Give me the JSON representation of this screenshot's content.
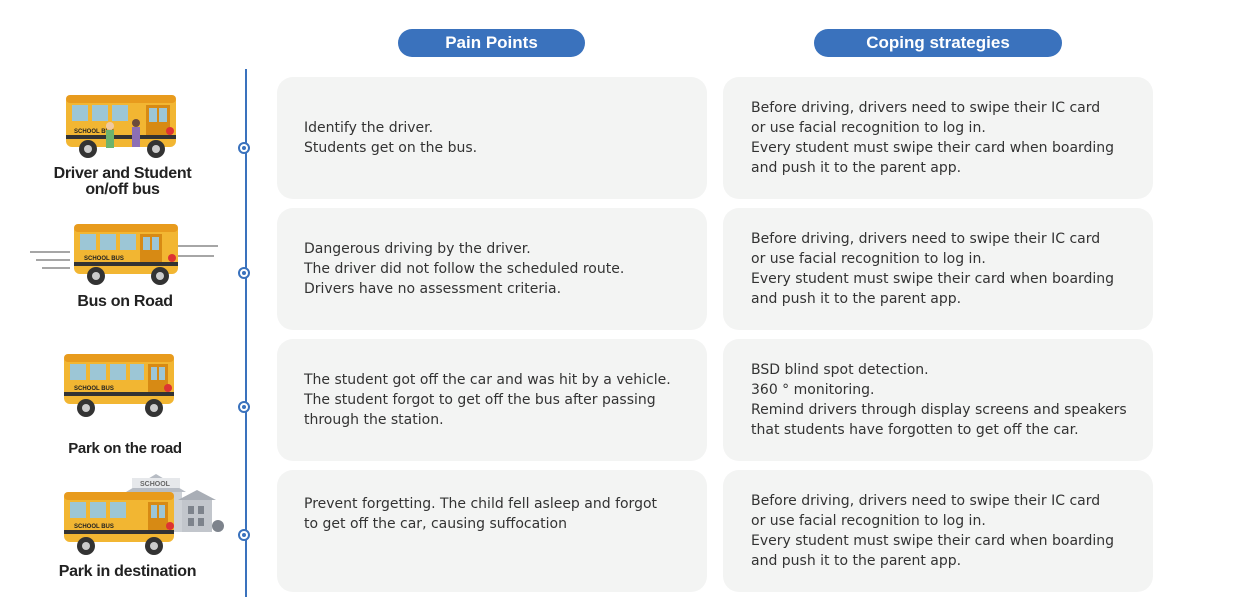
{
  "headers": {
    "pain_points": "Pain Points",
    "coping_strategies": "Coping strategies"
  },
  "colors": {
    "accent": "#3a72bd",
    "card_bg": "#f3f4f3",
    "bus_yellow": "#f2b632"
  },
  "rows": [
    {
      "label": "Driver and Student\non/off bus",
      "illustration": "school-bus-with-student-and-driver",
      "bus_sign": "SCHOOL BUS",
      "pain": "Identify the driver.\nStudents get on the bus.",
      "strategy": "Before driving, drivers need to swipe their IC card\nor use facial recognition to log in.\nEvery student must swipe their card when boarding\nand push it to the parent app."
    },
    {
      "label": "Bus on Road",
      "illustration": "moving-school-bus",
      "bus_sign": "SCHOOL BUS",
      "pain": "Dangerous driving by the driver.\nThe driver did not follow the scheduled route.\nDrivers have no assessment criteria.",
      "strategy": "Before driving, drivers need to swipe their IC card\nor use facial recognition to log in.\nEvery student must swipe their card when boarding\nand push it to the parent app."
    },
    {
      "label": "Park on the road",
      "illustration": "parked-school-bus",
      "bus_sign": "SCHOOL BUS",
      "pain": "The student got off the car and was hit by a vehicle.\nThe student forgot to get off the bus after passing\nthrough the station.",
      "strategy": "BSD blind spot detection.\n360 ° monitoring.\nRemind drivers through display screens and speakers\nthat students have forgotten to get off the car."
    },
    {
      "label": "Park in destination",
      "illustration": "school-bus-at-school-building",
      "bus_sign": "SCHOOL BUS",
      "building_sign": "SCHOOL",
      "pain": "Prevent forgetting. The child fell asleep and forgot\nto get off the car, causing suffocation",
      "strategy": "Before driving, drivers need to swipe their IC card\nor use facial recognition to log in.\nEvery student must swipe their card when boarding\nand push it to the parent app."
    }
  ]
}
